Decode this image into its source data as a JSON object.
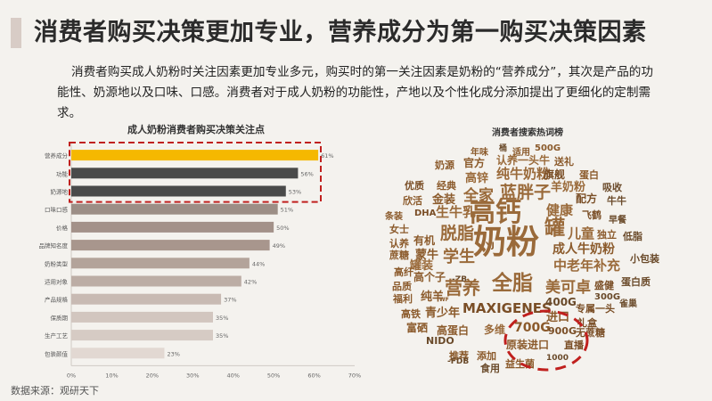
{
  "title": "消费者购买决策更加专业，营养成分为第一购买决策因素",
  "description": "消费者购买成人奶粉时关注因素更加专业多元，购买时的第一关注因素是奶粉的“营养成分”，其次是产品的功能性、奶源地以及口味、口感。消费者对于成人奶粉的功能性，产地以及个性化成分添加提出了更细化的定制需求。",
  "source": "数据来源：观研天下",
  "cloud_title": "消费者搜索热词榜",
  "colors": {
    "gold": "#f5b800",
    "dark": "#4a4a4a",
    "bar": "#a89890",
    "light": "#ddd0c8",
    "highlight": "#c0201e",
    "word": "#8b5a2b"
  },
  "chart_data": {
    "type": "bar",
    "orientation": "horizontal",
    "title": "成人奶粉消费者购买决策关注点",
    "categories": [
      "营养成分",
      "功能",
      "奶源地",
      "口味口感",
      "价格",
      "品牌知名度",
      "奶粉类型",
      "适用对象",
      "产品规格",
      "保质期",
      "生产工艺",
      "包装颜值"
    ],
    "values": [
      61,
      56,
      53,
      51,
      50,
      49,
      44,
      42,
      37,
      35,
      35,
      23
    ],
    "value_labels": [
      "61%",
      "56%",
      "53%",
      "51%",
      "50%",
      "49%",
      "44%",
      "42%",
      "37%",
      "35%",
      "35%",
      "23%"
    ],
    "xticks": [
      "0%",
      "10%",
      "20%",
      "30%",
      "40%",
      "50%",
      "60%",
      "70%"
    ],
    "xlim": [
      0,
      70
    ],
    "highlighted_categories": [
      "营养成分",
      "功能",
      "奶源地"
    ]
  },
  "word_cloud": [
    {
      "text": "年味"
    },
    {
      "text": "桶"
    },
    {
      "text": "适用"
    },
    {
      "text": "500G"
    },
    {
      "text": "奶源"
    },
    {
      "text": "官方"
    },
    {
      "text": "认养一头牛"
    },
    {
      "text": "送礼"
    },
    {
      "text": "高锌"
    },
    {
      "text": "纯牛奶粉"
    },
    {
      "text": "旗舰"
    },
    {
      "text": "蛋白"
    },
    {
      "text": "优质"
    },
    {
      "text": "经典"
    },
    {
      "text": "羊奶粉"
    },
    {
      "text": "吸收"
    },
    {
      "text": "欣活"
    },
    {
      "text": "金装"
    },
    {
      "text": "全家"
    },
    {
      "text": "蓝胖子"
    },
    {
      "text": "配方"
    },
    {
      "text": "牛牛"
    },
    {
      "text": "条装"
    },
    {
      "text": "DHA"
    },
    {
      "text": "生牛乳"
    },
    {
      "text": "健康"
    },
    {
      "text": "飞鹤"
    },
    {
      "text": "早餐"
    },
    {
      "text": "高钙"
    },
    {
      "text": "女士"
    },
    {
      "text": "罐"
    },
    {
      "text": "儿童"
    },
    {
      "text": "独立"
    },
    {
      "text": "低脂"
    },
    {
      "text": "认养"
    },
    {
      "text": "有机"
    },
    {
      "text": "脱脂"
    },
    {
      "text": "成人牛奶粉"
    },
    {
      "text": "蔗糖"
    },
    {
      "text": "蒙牛"
    },
    {
      "text": "YJ"
    },
    {
      "text": "奶粉"
    },
    {
      "text": "小包装"
    },
    {
      "text": "高纤"
    },
    {
      "text": "罐装"
    },
    {
      "text": "学生"
    },
    {
      "text": "中老年补充"
    },
    {
      "text": "品质"
    },
    {
      "text": "高个子"
    },
    {
      "text": "-ZB"
    },
    {
      "text": "蛋白质"
    },
    {
      "text": "福利"
    },
    {
      "text": "纯羊"
    },
    {
      "text": "营养"
    },
    {
      "text": "全脂"
    },
    {
      "text": "美可卓"
    },
    {
      "text": "盛健"
    },
    {
      "text": "300G"
    },
    {
      "text": "雀巢"
    },
    {
      "text": "WF"
    },
    {
      "text": "高铁"
    },
    {
      "text": "青少年"
    },
    {
      "text": "MAXIGENES"
    },
    {
      "text": "400G"
    },
    {
      "text": "专属一头"
    },
    {
      "text": "富硒"
    },
    {
      "text": "进口"
    },
    {
      "text": "礼盒"
    },
    {
      "text": "高蛋白"
    },
    {
      "text": "多维"
    },
    {
      "text": "700G"
    },
    {
      "text": "900G"
    },
    {
      "text": "无蔗糖"
    },
    {
      "text": "NIDO"
    },
    {
      "text": "原装进口"
    },
    {
      "text": "直播"
    },
    {
      "text": "推荐"
    },
    {
      "text": "添加"
    },
    {
      "text": "-FDB"
    },
    {
      "text": "食用"
    },
    {
      "text": "益生菌"
    },
    {
      "text": "1000"
    }
  ]
}
